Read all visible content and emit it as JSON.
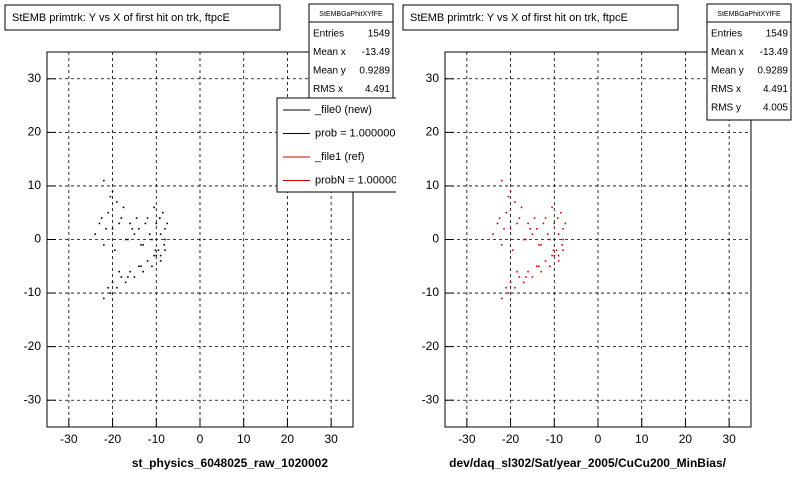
{
  "chart_data": [
    {
      "type": "scatter",
      "title": "StEMB primtrk: Y vs X of first hit on trk, ftpcE",
      "x_label": "st_physics_6048025_raw_1020002",
      "xlim": [
        -35,
        35
      ],
      "ylim": [
        -35,
        35
      ],
      "xticks": [
        -30,
        -20,
        -10,
        0,
        10,
        20,
        30
      ],
      "yticks": [
        -30,
        -20,
        -10,
        0,
        10,
        20,
        30
      ],
      "grid": true,
      "stats": {
        "title": "StEMBGaPhitXYfFE",
        "rows": [
          [
            "Entries",
            "1549"
          ],
          [
            "Mean x",
            "-13.49"
          ],
          [
            "Mean y",
            "0.9289"
          ],
          [
            "RMS x",
            "4.491"
          ],
          [
            "RMS y",
            "4.005"
          ]
        ]
      },
      "legend": [
        {
          "label": "_file0 (new)",
          "color": "#000000"
        },
        {
          "label": "prob = 1.000000",
          "color": "#000000"
        },
        {
          "label": "_file1 (ref)",
          "color": "#d00000"
        },
        {
          "label": "probN = 1.000000",
          "color": "#d00000"
        }
      ],
      "series": [
        {
          "color": "#000000",
          "x": [
            -24,
            -23,
            -22,
            -21,
            -20,
            -19,
            -18,
            -17,
            -16,
            -15,
            -14,
            -13,
            -12,
            -11,
            -10,
            -9,
            -8,
            -8.5,
            -9.5,
            -10.5,
            -11.5,
            -12.5,
            -13.5,
            -14.5,
            -15.5,
            -16.5,
            -17.5,
            -18.5,
            -19.5,
            -20.5,
            -21.5,
            -22.5,
            -9,
            -8,
            -7.5,
            -8.2,
            -9.2,
            -10.2,
            -22,
            -20,
            -22,
            -21,
            -20,
            -19,
            -18,
            -17,
            -16,
            -15,
            -14,
            -13,
            -12,
            -11,
            -10,
            -9,
            -8,
            -20.5,
            -18.5,
            -16.5,
            -13.5,
            -10.5
          ],
          "values": [
            1,
            3,
            -1,
            5,
            2,
            7,
            4,
            0,
            3,
            1,
            2,
            -1,
            4,
            0,
            3,
            1,
            2,
            5,
            -2,
            6,
            1,
            3,
            -1,
            4,
            2,
            0,
            6,
            3,
            -2,
            8,
            2,
            4,
            -3,
            0,
            3,
            -1,
            4,
            -2,
            11,
            9,
            -11,
            -9,
            -8,
            -9,
            -7,
            -8,
            -6,
            -7,
            -5,
            -6,
            -4,
            -5,
            -3,
            -4,
            -2,
            -10,
            -6,
            -7,
            -5,
            -3
          ]
        }
      ]
    },
    {
      "type": "scatter",
      "title": "StEMB primtrk: Y vs X of first hit on trk, ftpcE",
      "x_label": "dev/daq_sl302/Sat/year_2005/CuCu200_MinBias/",
      "xlim": [
        -35,
        35
      ],
      "ylim": [
        -35,
        35
      ],
      "xticks": [
        -30,
        -20,
        -10,
        0,
        10,
        20,
        30
      ],
      "yticks": [
        -30,
        -20,
        -10,
        0,
        10,
        20,
        30
      ],
      "grid": true,
      "stats": {
        "title": "StEMBGaPhitXYfFE",
        "rows": [
          [
            "Entries",
            "1549"
          ],
          [
            "Mean x",
            "-13.49"
          ],
          [
            "Mean y",
            "0.9289"
          ],
          [
            "RMS x",
            "4.491"
          ],
          [
            "RMS y",
            "4.005"
          ]
        ]
      },
      "series": [
        {
          "color": "#d00000",
          "x": [
            -24,
            -23,
            -22,
            -21,
            -20,
            -19,
            -18,
            -17,
            -16,
            -15,
            -14,
            -13,
            -12,
            -11,
            -10,
            -9,
            -8,
            -8.5,
            -9.5,
            -10.5,
            -11.5,
            -12.5,
            -13.5,
            -14.5,
            -15.5,
            -16.5,
            -17.5,
            -18.5,
            -19.5,
            -20.5,
            -21.5,
            -22.5,
            -9,
            -8,
            -7.5,
            -8.2,
            -9.2,
            -10.2,
            -22,
            -20,
            -22,
            -21,
            -20,
            -19,
            -18,
            -17,
            -16,
            -15,
            -14,
            -13,
            -12,
            -11,
            -10,
            -9,
            -8,
            -20.5,
            -18.5,
            -16.5,
            -13.5,
            -10.5
          ],
          "values": [
            1,
            3,
            -1,
            5,
            2,
            7,
            4,
            0,
            3,
            1,
            2,
            -1,
            4,
            0,
            3,
            1,
            2,
            5,
            -2,
            6,
            1,
            3,
            -1,
            4,
            2,
            0,
            6,
            3,
            -2,
            8,
            2,
            4,
            -3,
            0,
            3,
            -1,
            4,
            -2,
            11,
            9,
            -11,
            -9,
            -8,
            -9,
            -7,
            -8,
            -6,
            -7,
            -5,
            -6,
            -4,
            -5,
            -3,
            -4,
            -2,
            -10,
            -6,
            -7,
            -5,
            -3
          ]
        }
      ]
    }
  ]
}
